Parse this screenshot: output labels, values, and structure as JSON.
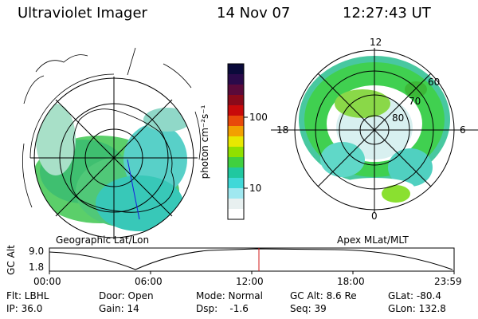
{
  "header": {
    "title": "Ultraviolet Imager",
    "date": "14 Nov 07",
    "time": "12:27:43 UT"
  },
  "left_panel": {
    "caption": "Geographic Lat/Lon"
  },
  "right_panel": {
    "caption": "Apex MLat/MLT",
    "mlt_labels": {
      "top": "12",
      "bottom": "0",
      "left": "18",
      "right": "6"
    },
    "lat_labels": [
      "60",
      "70",
      "80"
    ]
  },
  "colorbar": {
    "unit_label": "photon cm⁻²s⁻¹",
    "ticks": [
      "100",
      "10"
    ],
    "colors": [
      "#0a0a3a",
      "#2a0a4a",
      "#5a0a3a",
      "#8a0a1a",
      "#c80a0a",
      "#e84a0a",
      "#f2a000",
      "#e8e800",
      "#90e000",
      "#40d040",
      "#20c8a0",
      "#40d8d8",
      "#a0e8f0",
      "#e8f0f0",
      "#ffffff"
    ]
  },
  "altitude_plot": {
    "ylabel": "GC Alt",
    "yticks": [
      "9.0",
      "1.8"
    ],
    "xticks": [
      "00:00",
      "06:00",
      "12:00",
      "18:00",
      "23:59"
    ],
    "current_time": "12:27"
  },
  "footer": {
    "filter": "Flt: LBHL",
    "ip": "IP: 36.0",
    "door": "Door: Open",
    "gain": "Gain: 14",
    "mode": "Mode: Normal",
    "dsp": "Dsp:    -1.6",
    "gc_alt": "GC Alt: 8.6 Re",
    "seq": "Seq: 39",
    "glat": "GLat: -80.4",
    "glon": "GLon: 132.8"
  }
}
